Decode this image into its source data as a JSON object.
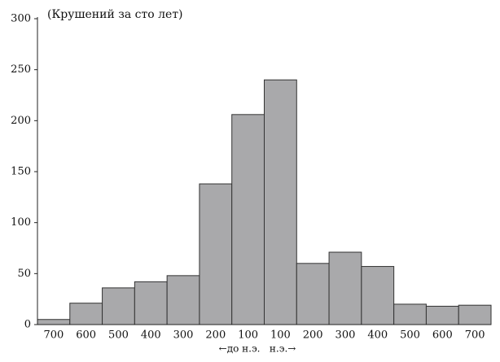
{
  "chart_data": {
    "type": "bar",
    "title": "(Крушений за сто лет)",
    "xlabel": "←до н.э.   н.э.→",
    "categories": [
      "700",
      "600",
      "500",
      "400",
      "300",
      "200",
      "100",
      "100",
      "200",
      "300",
      "400",
      "500",
      "600",
      "700"
    ],
    "values": [
      5,
      21,
      36,
      42,
      48,
      138,
      206,
      240,
      60,
      71,
      57,
      20,
      18,
      19
    ],
    "color": "#a9a9ab",
    "ylim": [
      0,
      300
    ],
    "yticks": [
      0,
      50,
      100,
      150,
      200,
      250,
      300
    ],
    "grid": false
  }
}
